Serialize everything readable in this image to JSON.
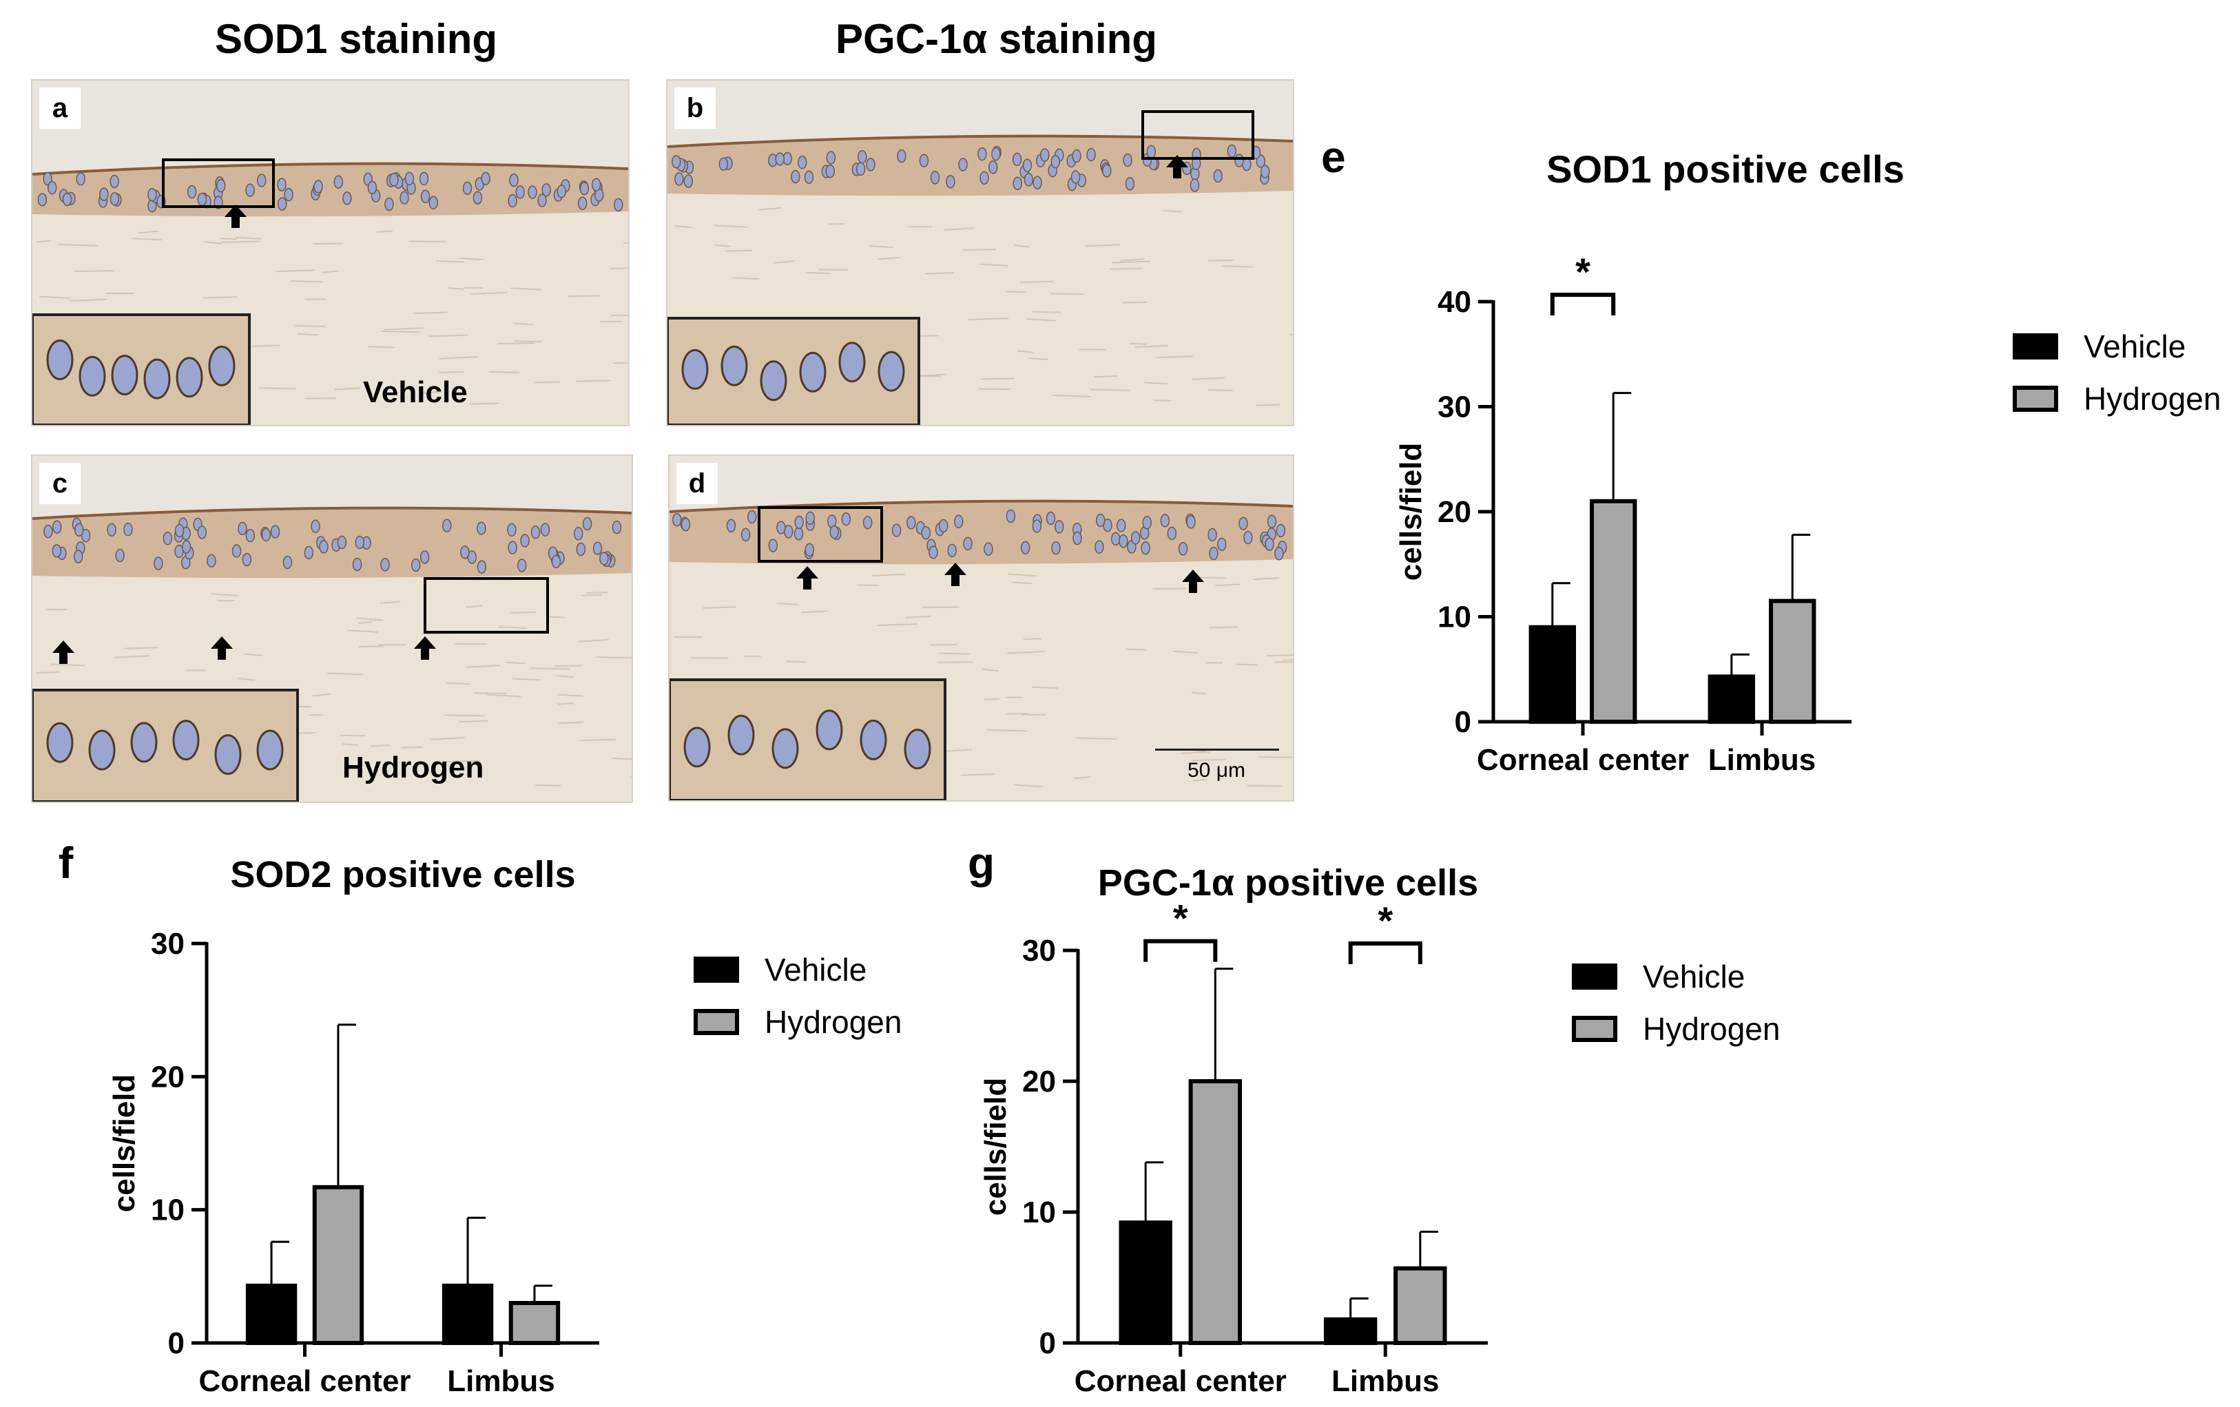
{
  "column_titles": [
    "SOD1 staining",
    "PGC-1α staining"
  ],
  "micrographs": [
    {
      "letter": "a",
      "group_label": "Vehicle"
    },
    {
      "letter": "b",
      "group_label": ""
    },
    {
      "letter": "c",
      "group_label": "Hydrogen"
    },
    {
      "letter": "d",
      "group_label": "",
      "scale_bar": "50 μm"
    }
  ],
  "colors": {
    "vehicle": "#000000",
    "hydrogen": "#a6a6a6",
    "tissue": "#ebe3d6",
    "stain": "#c9a585",
    "nuclei": "#9aa6d0"
  },
  "chart_data": [
    {
      "panel": "e",
      "type": "bar",
      "title": "SOD1 positive cells",
      "ylabel": "cells/field",
      "ylim": [
        0,
        40
      ],
      "yticks": [
        0,
        10,
        20,
        30,
        40
      ],
      "categories": [
        "Corneal center",
        "Limbus"
      ],
      "series": [
        {
          "name": "Vehicle",
          "values": [
            9,
            4.3
          ],
          "errors": [
            4.2,
            2.1
          ]
        },
        {
          "name": "Hydrogen",
          "values": [
            21,
            11.5
          ],
          "errors": [
            10.3,
            6.3
          ]
        }
      ],
      "significance": [
        {
          "category": 0,
          "label": "*"
        }
      ],
      "legend": "right"
    },
    {
      "panel": "f",
      "type": "bar",
      "title": "SOD2 positive cells",
      "ylabel": "cells/field",
      "ylim": [
        0,
        30
      ],
      "yticks": [
        0,
        10,
        20,
        30
      ],
      "categories": [
        "Corneal center",
        "Limbus"
      ],
      "series": [
        {
          "name": "Vehicle",
          "values": [
            4.3,
            4.3
          ],
          "errors": [
            3.3,
            5.1
          ]
        },
        {
          "name": "Hydrogen",
          "values": [
            11.7,
            3
          ],
          "errors": [
            12.2,
            1.3
          ]
        }
      ],
      "significance": [],
      "legend": "right"
    },
    {
      "panel": "g",
      "type": "bar",
      "title": "PGC-1α positive cells",
      "ylabel": "cells/field",
      "ylim": [
        0,
        30
      ],
      "yticks": [
        0,
        10,
        20,
        30
      ],
      "categories": [
        "Corneal center",
        "Limbus"
      ],
      "series": [
        {
          "name": "Vehicle",
          "values": [
            9.2,
            1.8
          ],
          "errors": [
            4.6,
            1.6
          ]
        },
        {
          "name": "Hydrogen",
          "values": [
            20,
            5.7
          ],
          "errors": [
            8.6,
            2.8
          ]
        }
      ],
      "significance": [
        {
          "category": 0,
          "label": "*"
        },
        {
          "category": 1,
          "label": "*"
        }
      ],
      "legend": "right"
    }
  ]
}
